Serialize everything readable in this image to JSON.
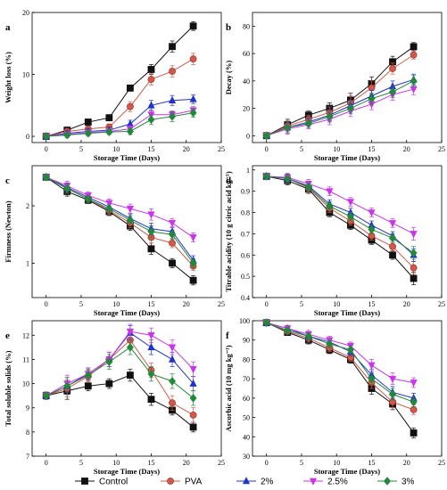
{
  "legend": {
    "placement": "bottom"
  },
  "chart_data": [
    {
      "panel": "a",
      "type": "line",
      "xlabel": "Storage Time (Days)",
      "ylabel": "Weight loss (%)",
      "xlim": [
        -2,
        25
      ],
      "ylim": [
        -1,
        20
      ],
      "xticks": [
        0,
        5,
        10,
        15,
        20,
        25
      ],
      "yticks": [
        0,
        10,
        20
      ],
      "x": [
        0,
        3,
        6,
        9,
        12,
        15,
        18,
        21
      ],
      "series": [
        {
          "name": "Control",
          "marker": "square",
          "color": "#111111",
          "values": [
            0,
            1.0,
            2.3,
            3.0,
            7.8,
            10.8,
            14.5,
            17.8
          ],
          "errors": [
            0.3,
            0.5,
            0.5,
            0.5,
            0.5,
            0.8,
            0.9,
            0.7
          ]
        },
        {
          "name": "PVA",
          "marker": "circle",
          "color": "#d4574a",
          "values": [
            0,
            0.8,
            1.2,
            1.5,
            4.8,
            9.2,
            10.5,
            12.5
          ],
          "errors": [
            0.3,
            0.5,
            0.5,
            0.5,
            0.8,
            0.9,
            0.9,
            0.9
          ]
        },
        {
          "name": "2%",
          "marker": "triangle-up",
          "color": "#2233cc",
          "values": [
            0,
            0.5,
            0.8,
            1.0,
            2.0,
            5.0,
            5.8,
            6.0
          ],
          "errors": [
            0.3,
            0.4,
            0.4,
            0.5,
            0.6,
            0.8,
            0.8,
            0.7
          ]
        },
        {
          "name": "2.5%",
          "marker": "triangle-down",
          "color": "#cc33ee",
          "values": [
            0,
            0.3,
            0.6,
            0.8,
            1.2,
            3.5,
            3.5,
            4.2
          ],
          "errors": [
            0.3,
            0.4,
            0.4,
            0.4,
            0.5,
            0.6,
            0.6,
            0.6
          ]
        },
        {
          "name": "3%",
          "marker": "diamond",
          "color": "#22883a",
          "values": [
            0,
            0.2,
            0.5,
            0.7,
            0.8,
            2.7,
            3.2,
            3.8
          ],
          "errors": [
            0.3,
            0.4,
            0.4,
            0.4,
            0.5,
            0.8,
            0.8,
            0.7
          ]
        }
      ]
    },
    {
      "panel": "b",
      "type": "line",
      "xlabel": "Storage Time (Days)",
      "ylabel": "Decay (%)",
      "xlim": [
        -2,
        25
      ],
      "ylim": [
        -5,
        90
      ],
      "xticks": [
        0,
        5,
        10,
        15,
        20,
        25
      ],
      "yticks": [
        0,
        20,
        40,
        60,
        80
      ],
      "x": [
        0,
        3,
        6,
        9,
        12,
        15,
        18,
        21
      ],
      "series": [
        {
          "name": "Control",
          "marker": "square",
          "color": "#111111",
          "values": [
            0,
            8,
            15,
            20,
            26,
            38,
            54,
            65
          ],
          "errors": [
            1.5,
            4,
            3,
            4,
            5,
            5,
            4,
            3
          ]
        },
        {
          "name": "PVA",
          "marker": "circle",
          "color": "#d4574a",
          "values": [
            0,
            7,
            12,
            17,
            24,
            35,
            49,
            59
          ],
          "errors": [
            1.5,
            4,
            3,
            4,
            5,
            5,
            4,
            3
          ]
        },
        {
          "name": "2%",
          "marker": "triangle-up",
          "color": "#2233cc",
          "values": [
            0,
            6,
            10,
            15,
            22,
            29,
            36,
            41
          ],
          "errors": [
            1.5,
            4,
            3,
            4,
            4,
            4,
            4,
            4
          ]
        },
        {
          "name": "2.5%",
          "marker": "triangle-down",
          "color": "#cc33ee",
          "values": [
            0,
            5,
            8,
            12,
            18,
            23,
            30,
            34
          ],
          "errors": [
            1.5,
            4,
            3,
            4,
            4,
            4,
            4,
            4
          ]
        },
        {
          "name": "3%",
          "marker": "diamond",
          "color": "#22883a",
          "values": [
            0,
            6,
            9,
            14,
            20,
            27,
            32,
            40
          ],
          "errors": [
            1.5,
            4,
            3,
            4,
            4,
            4,
            4,
            4
          ]
        }
      ]
    },
    {
      "panel": "c",
      "type": "line",
      "xlabel": "Storage Time (Days)",
      "ylabel": "Firmness (Newton)",
      "xlim": [
        -2,
        25
      ],
      "ylim": [
        0.4,
        2.7
      ],
      "xticks": [
        0,
        5,
        10,
        15,
        20,
        25
      ],
      "yticks": [
        1,
        2
      ],
      "x": [
        0,
        3,
        6,
        9,
        12,
        15,
        18,
        21
      ],
      "series": [
        {
          "name": "Control",
          "marker": "square",
          "color": "#111111",
          "values": [
            2.5,
            2.25,
            2.1,
            1.9,
            1.65,
            1.25,
            1.0,
            0.7
          ],
          "errors": [
            0.05,
            0.08,
            0.06,
            0.07,
            0.08,
            0.1,
            0.08,
            0.08
          ]
        },
        {
          "name": "PVA",
          "marker": "circle",
          "color": "#d4574a",
          "values": [
            2.5,
            2.3,
            2.12,
            1.92,
            1.7,
            1.45,
            1.35,
            0.95
          ],
          "errors": [
            0.05,
            0.08,
            0.06,
            0.07,
            0.08,
            0.1,
            0.08,
            0.08
          ]
        },
        {
          "name": "2%",
          "marker": "triangle-up",
          "color": "#2233cc",
          "values": [
            2.5,
            2.32,
            2.15,
            1.98,
            1.78,
            1.6,
            1.55,
            1.05
          ],
          "errors": [
            0.05,
            0.08,
            0.06,
            0.07,
            0.08,
            0.1,
            0.08,
            0.08
          ]
        },
        {
          "name": "2.5%",
          "marker": "triangle-down",
          "color": "#cc33ee",
          "values": [
            2.5,
            2.35,
            2.18,
            2.05,
            1.95,
            1.85,
            1.7,
            1.45
          ],
          "errors": [
            0.05,
            0.08,
            0.06,
            0.07,
            0.08,
            0.1,
            0.08,
            0.08
          ]
        },
        {
          "name": "3%",
          "marker": "diamond",
          "color": "#22883a",
          "values": [
            2.5,
            2.3,
            2.12,
            1.95,
            1.75,
            1.55,
            1.5,
            1.0
          ],
          "errors": [
            0.05,
            0.08,
            0.06,
            0.07,
            0.08,
            0.1,
            0.08,
            0.08
          ]
        }
      ]
    },
    {
      "panel": "d",
      "type": "line",
      "xlabel": "Storage Time (Days)",
      "ylabel": "Titrable acidity (10 g citric acid kg⁻¹)",
      "xlim": [
        -2,
        25
      ],
      "ylim": [
        0.4,
        1.02
      ],
      "xticks": [
        0,
        5,
        10,
        15,
        20,
        25
      ],
      "yticks": [
        0.4,
        0.5,
        0.6,
        0.7,
        0.8,
        0.9,
        1.0
      ],
      "x": [
        0,
        3,
        6,
        9,
        12,
        15,
        18,
        21
      ],
      "series": [
        {
          "name": "Control",
          "marker": "square",
          "color": "#111111",
          "values": [
            0.97,
            0.95,
            0.91,
            0.8,
            0.74,
            0.67,
            0.6,
            0.49
          ],
          "errors": [
            0.015,
            0.02,
            0.02,
            0.02,
            0.02,
            0.02,
            0.02,
            0.03
          ]
        },
        {
          "name": "PVA",
          "marker": "circle",
          "color": "#d4574a",
          "values": [
            0.97,
            0.96,
            0.915,
            0.82,
            0.76,
            0.69,
            0.64,
            0.54
          ],
          "errors": [
            0.015,
            0.02,
            0.02,
            0.02,
            0.02,
            0.02,
            0.02,
            0.03
          ]
        },
        {
          "name": "2%",
          "marker": "triangle-up",
          "color": "#2233cc",
          "values": [
            0.97,
            0.96,
            0.925,
            0.84,
            0.8,
            0.74,
            0.69,
            0.6
          ],
          "errors": [
            0.015,
            0.02,
            0.02,
            0.02,
            0.02,
            0.02,
            0.02,
            0.03
          ]
        },
        {
          "name": "2.5%",
          "marker": "triangle-down",
          "color": "#cc33ee",
          "values": [
            0.97,
            0.965,
            0.935,
            0.9,
            0.85,
            0.8,
            0.75,
            0.7
          ],
          "errors": [
            0.015,
            0.02,
            0.02,
            0.02,
            0.02,
            0.02,
            0.02,
            0.03
          ]
        },
        {
          "name": "3%",
          "marker": "diamond",
          "color": "#22883a",
          "values": [
            0.97,
            0.96,
            0.92,
            0.83,
            0.78,
            0.72,
            0.68,
            0.61
          ],
          "errors": [
            0.015,
            0.02,
            0.02,
            0.02,
            0.02,
            0.02,
            0.02,
            0.03
          ]
        }
      ]
    },
    {
      "panel": "e",
      "type": "line",
      "xlabel": "Storage Time (Days)",
      "ylabel": "Total soluble solids (%)",
      "xlim": [
        -2,
        25
      ],
      "ylim": [
        7,
        12.6
      ],
      "xticks": [
        0,
        5,
        10,
        15,
        20,
        25
      ],
      "yticks": [
        7,
        8,
        9,
        10,
        11,
        12
      ],
      "x": [
        0,
        3,
        6,
        9,
        12,
        15,
        18,
        21
      ],
      "series": [
        {
          "name": "Control",
          "marker": "square",
          "color": "#111111",
          "values": [
            9.5,
            9.7,
            9.9,
            10.0,
            10.35,
            9.35,
            8.9,
            8.2
          ],
          "errors": [
            0.15,
            0.35,
            0.2,
            0.2,
            0.25,
            0.25,
            0.2,
            0.2
          ]
        },
        {
          "name": "PVA",
          "marker": "circle",
          "color": "#d4574a",
          "values": [
            9.5,
            9.8,
            10.3,
            11.0,
            11.8,
            10.55,
            9.2,
            8.7
          ],
          "errors": [
            0.15,
            0.35,
            0.25,
            0.3,
            0.3,
            0.3,
            0.3,
            0.3
          ]
        },
        {
          "name": "2%",
          "marker": "triangle-up",
          "color": "#2233cc",
          "values": [
            9.5,
            9.9,
            10.4,
            11.0,
            12.1,
            11.5,
            11.0,
            10.0
          ],
          "errors": [
            0.15,
            0.35,
            0.25,
            0.3,
            0.3,
            0.3,
            0.3,
            0.3
          ]
        },
        {
          "name": "2.5%",
          "marker": "triangle-down",
          "color": "#cc33ee",
          "values": [
            9.5,
            10.0,
            10.4,
            11.0,
            12.15,
            12.0,
            11.5,
            10.6
          ],
          "errors": [
            0.15,
            0.35,
            0.25,
            0.3,
            0.3,
            0.3,
            0.3,
            0.3
          ]
        },
        {
          "name": "3%",
          "marker": "diamond",
          "color": "#22883a",
          "values": [
            9.5,
            9.9,
            10.35,
            10.9,
            11.5,
            10.4,
            10.1,
            9.4
          ],
          "errors": [
            0.15,
            0.35,
            0.25,
            0.3,
            0.3,
            0.3,
            0.3,
            0.3
          ]
        }
      ]
    },
    {
      "panel": "f",
      "type": "line",
      "xlabel": "Storage Time (Days)",
      "ylabel": "Ascorbic acid (10 mg kg⁻¹)",
      "xlim": [
        -2,
        25
      ],
      "ylim": [
        30,
        100
      ],
      "xticks": [
        0,
        5,
        10,
        15,
        20,
        25
      ],
      "yticks": [
        30,
        40,
        50,
        60,
        70,
        80,
        90,
        100
      ],
      "x": [
        0,
        3,
        6,
        9,
        12,
        15,
        18,
        21
      ],
      "series": [
        {
          "name": "Control",
          "marker": "square",
          "color": "#111111",
          "values": [
            99,
            94,
            90,
            85,
            80,
            65,
            57,
            42
          ],
          "errors": [
            1,
            1.5,
            2,
            2,
            2,
            3,
            3,
            2.5
          ]
        },
        {
          "name": "PVA",
          "marker": "circle",
          "color": "#d4574a",
          "values": [
            99,
            94.5,
            91,
            86,
            81,
            68,
            58,
            54
          ],
          "errors": [
            1,
            1.5,
            2,
            2,
            2,
            3,
            3,
            2.5
          ]
        },
        {
          "name": "2%",
          "marker": "triangle-up",
          "color": "#2233cc",
          "values": [
            99,
            96,
            92,
            89,
            84,
            72,
            63,
            60
          ],
          "errors": [
            1,
            1.5,
            2,
            2,
            2,
            3,
            3,
            2.5
          ]
        },
        {
          "name": "2.5%",
          "marker": "triangle-down",
          "color": "#cc33ee",
          "values": [
            99,
            96,
            93,
            90,
            87,
            77,
            70,
            68
          ],
          "errors": [
            1,
            1.5,
            2,
            2,
            2,
            3,
            3,
            2.5
          ]
        },
        {
          "name": "3%",
          "marker": "diamond",
          "color": "#22883a",
          "values": [
            99,
            95,
            92,
            88,
            85,
            70,
            62,
            58
          ],
          "errors": [
            1,
            1.5,
            2,
            2,
            2,
            3,
            3,
            2.5
          ]
        }
      ]
    }
  ]
}
